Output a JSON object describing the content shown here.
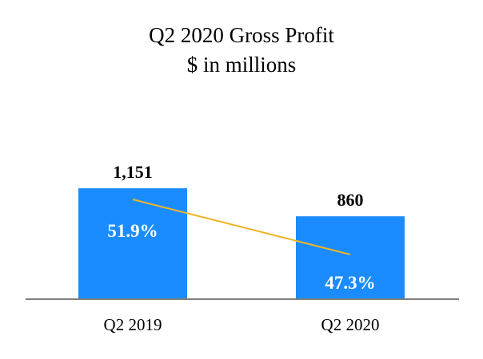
{
  "chart_data": {
    "type": "bar",
    "title": "Q2 2020 Gross Profit",
    "subtitle": "$ in millions",
    "categories": [
      "Q2 2019",
      "Q2 2020"
    ],
    "values": [
      1151,
      860
    ],
    "value_labels": [
      "1,151",
      "860"
    ],
    "margin_series": {
      "name": "Gross margin",
      "type": "line",
      "values": [
        51.9,
        47.3
      ],
      "labels": [
        "51.9%",
        "47.3%"
      ]
    },
    "xlabel": "",
    "ylabel": "",
    "ylim": [
      0,
      1151
    ],
    "grid": false,
    "legend": "none"
  },
  "colors": {
    "bar": "#1a8cff",
    "line": "#f0b429",
    "axis": "#7f7f7f",
    "text": "#000000",
    "bar_text": "#ffffff"
  }
}
